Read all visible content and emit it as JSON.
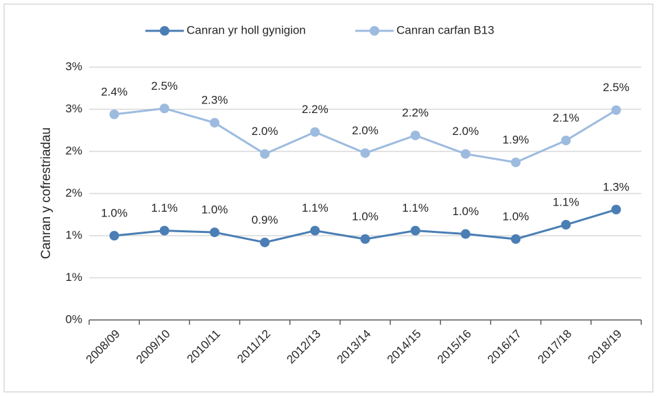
{
  "chart_data": {
    "type": "line",
    "y_label": "Canran y cofrestriadau",
    "categories": [
      "2008/09",
      "2009/10",
      "2010/11",
      "2011/12",
      "2012/13",
      "2013/14",
      "2014/15",
      "2015/16",
      "2016/17",
      "2017/18",
      "2018/19"
    ],
    "series": [
      {
        "name": "Canran yr holl gynigion",
        "color": "#4a7eb4",
        "values": [
          1.0,
          1.06,
          1.04,
          0.92,
          1.06,
          0.96,
          1.06,
          1.02,
          0.96,
          1.13,
          1.31
        ],
        "value_labels": [
          "1.0%",
          "1.1%",
          "1.0%",
          "0.9%",
          "1.1%",
          "1.0%",
          "1.1%",
          "1.0%",
          "1.0%",
          "1.1%",
          "1.3%"
        ]
      },
      {
        "name": "Canran carfan B13",
        "color": "#9dbbdf",
        "values": [
          2.44,
          2.51,
          2.34,
          1.97,
          2.23,
          1.98,
          2.19,
          1.97,
          1.87,
          2.13,
          2.49
        ],
        "value_labels": [
          "2.4%",
          "2.5%",
          "2.3%",
          "2.0%",
          "2.2%",
          "2.0%",
          "2.2%",
          "2.0%",
          "1.9%",
          "2.1%",
          "2.5%"
        ]
      }
    ],
    "ylim": [
      0,
      3
    ],
    "yticks": [
      {
        "value": 0,
        "label": "0%"
      },
      {
        "value": 0.5,
        "label": "1%"
      },
      {
        "value": 1,
        "label": "1%"
      },
      {
        "value": 1.5,
        "label": "2%"
      },
      {
        "value": 2,
        "label": "2%"
      },
      {
        "value": 2.5,
        "label": "3%"
      },
      {
        "value": 3,
        "label": "3%"
      }
    ],
    "grid": true,
    "legend": "top"
  }
}
